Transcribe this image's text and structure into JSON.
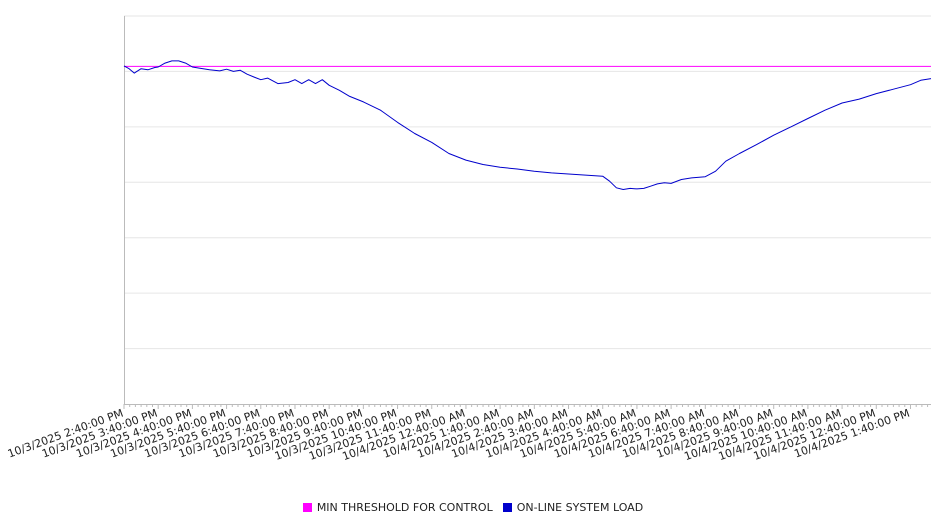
{
  "chart_data": {
    "type": "line",
    "title": "",
    "xlabel": "",
    "ylabel": "",
    "x_tick_labels": [
      "10/3/2025 2:40:00 PM",
      "10/3/2025 3:40:00 PM",
      "10/3/2025 4:40:00 PM",
      "10/3/2025 5:40:00 PM",
      "10/3/2025 6:40:00 PM",
      "10/3/2025 7:40:00 PM",
      "10/3/2025 8:40:00 PM",
      "10/3/2025 9:40:00 PM",
      "10/3/2025 10:40:00 PM",
      "10/3/2025 11:40:00 PM",
      "10/4/2025 12:40:00 AM",
      "10/4/2025 1:40:00 AM",
      "10/4/2025 2:40:00 AM",
      "10/4/2025 3:40:00 AM",
      "10/4/2025 4:40:00 AM",
      "10/4/2025 5:40:00 AM",
      "10/4/2025 6:40:00 AM",
      "10/4/2025 7:40:00 AM",
      "10/4/2025 8:40:00 AM",
      "10/4/2025 9:40:00 AM",
      "10/4/2025 10:40:00 AM",
      "10/4/2025 11:40:00 AM",
      "10/4/2025 12:40:00 PM",
      "10/4/2025 1:40:00 PM"
    ],
    "x_range_hours": [
      0,
      23.6
    ],
    "y_range": [
      0,
      7
    ],
    "y_tick_labels_shown": false,
    "grid": "horizontal",
    "legend_position": "bottom-center",
    "series": [
      {
        "name": "MIN THRESHOLD FOR CONTROL",
        "color": "#ff00ff",
        "x": [
          0,
          23.6
        ],
        "y": [
          6.09,
          6.09
        ]
      },
      {
        "name": "ON-LINE SYSTEM LOAD",
        "color": "#0000cc",
        "x": [
          0,
          0.15,
          0.3,
          0.5,
          0.7,
          0.9,
          1.0,
          1.2,
          1.4,
          1.6,
          1.8,
          2.0,
          2.2,
          2.5,
          2.8,
          3.0,
          3.2,
          3.4,
          3.6,
          3.8,
          4.0,
          4.2,
          4.5,
          4.8,
          5.0,
          5.2,
          5.4,
          5.6,
          5.8,
          6.0,
          6.3,
          6.6,
          7.0,
          7.5,
          8.0,
          8.5,
          9.0,
          9.5,
          10.0,
          10.5,
          11.0,
          11.5,
          12.0,
          12.5,
          13.0,
          13.5,
          14.0,
          14.2,
          14.4,
          14.6,
          14.8,
          15.0,
          15.2,
          15.4,
          15.6,
          15.8,
          16.0,
          16.3,
          16.6,
          17.0,
          17.3,
          17.6,
          18.0,
          18.5,
          19.0,
          19.5,
          20.0,
          20.5,
          21.0,
          21.5,
          22.0,
          22.5,
          23.0,
          23.3,
          23.6
        ],
        "y": [
          6.1,
          6.05,
          5.97,
          6.05,
          6.03,
          6.07,
          6.08,
          6.15,
          6.19,
          6.19,
          6.15,
          6.08,
          6.06,
          6.03,
          6.01,
          6.04,
          6.0,
          6.02,
          5.95,
          5.9,
          5.85,
          5.88,
          5.78,
          5.8,
          5.85,
          5.78,
          5.85,
          5.78,
          5.85,
          5.75,
          5.66,
          5.55,
          5.45,
          5.3,
          5.08,
          4.88,
          4.72,
          4.52,
          4.4,
          4.32,
          4.27,
          4.24,
          4.2,
          4.17,
          4.15,
          4.13,
          4.11,
          4.02,
          3.9,
          3.87,
          3.89,
          3.88,
          3.89,
          3.93,
          3.97,
          3.99,
          3.98,
          4.05,
          4.08,
          4.1,
          4.2,
          4.38,
          4.52,
          4.68,
          4.85,
          5.0,
          5.15,
          5.3,
          5.43,
          5.5,
          5.6,
          5.68,
          5.76,
          5.84,
          5.87
        ]
      }
    ]
  }
}
